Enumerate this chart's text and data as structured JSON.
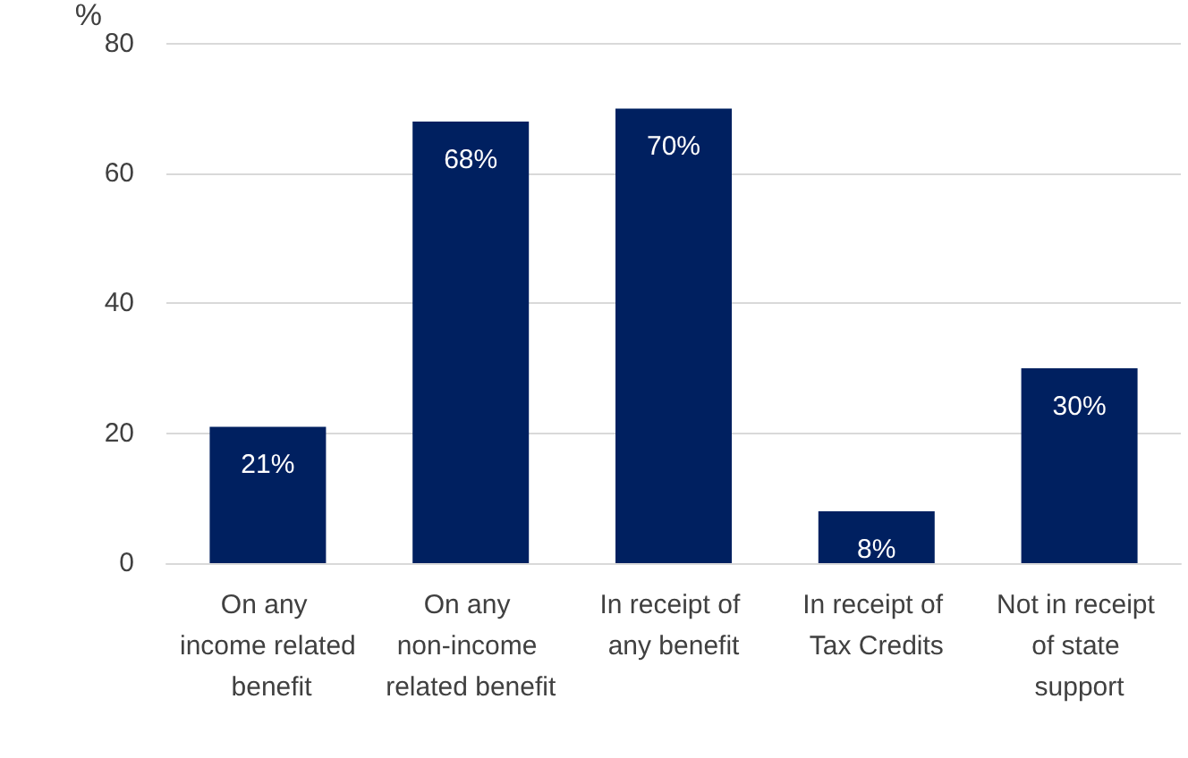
{
  "chart_data": {
    "type": "bar",
    "ylabel": "%",
    "categories": [
      "On any income related benefit",
      "On any non-income related benefit",
      "In receipt of any benefit",
      "In receipt of Tax Credits",
      "Not in receipt of state support"
    ],
    "values": [
      21,
      68,
      70,
      8,
      30
    ],
    "color": "#002060",
    "value_labels": [
      "21%",
      "68%",
      "70%",
      "8%",
      "30%"
    ],
    "ylim": [
      0,
      80
    ],
    "yticks": [
      0,
      20,
      40,
      60,
      80
    ],
    "grid": "y"
  }
}
